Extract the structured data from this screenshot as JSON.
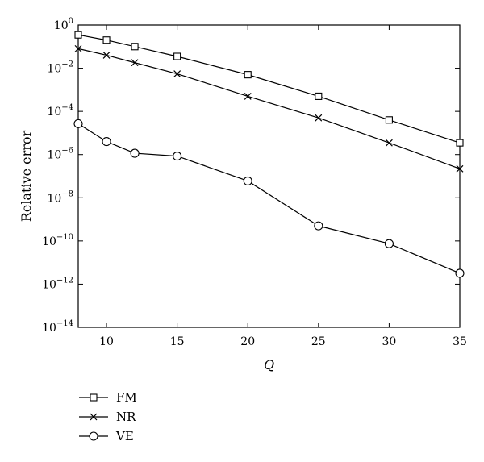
{
  "chart_data": {
    "type": "line",
    "title": "",
    "xlabel": "Q",
    "ylabel": "Relative error",
    "yscale": "log",
    "xlim": [
      8,
      35
    ],
    "ylim": [
      1e-14,
      1
    ],
    "x_ticks": [
      10,
      15,
      20,
      25,
      30,
      35
    ],
    "y_tick_exponents": [
      0,
      -2,
      -4,
      -6,
      -8,
      -10,
      -12,
      -14
    ],
    "grid": false,
    "legend_position": "below-left",
    "series": [
      {
        "name": "FM",
        "marker": "square",
        "color": "#000000",
        "x": [
          8,
          10,
          12,
          15,
          20,
          25,
          30,
          35
        ],
        "y": [
          0.35,
          0.2,
          0.1,
          0.035,
          0.005,
          0.0005,
          4e-05,
          3.5e-06
        ]
      },
      {
        "name": "NR",
        "marker": "cross",
        "color": "#000000",
        "x": [
          8,
          10,
          12,
          15,
          20,
          25,
          30,
          35
        ],
        "y": [
          0.08,
          0.04,
          0.018,
          0.0055,
          0.0005,
          5e-05,
          3.5e-06,
          2.2e-07
        ]
      },
      {
        "name": "VE",
        "marker": "circle",
        "color": "#000000",
        "x": [
          8,
          10,
          12,
          15,
          20,
          25,
          30,
          35
        ],
        "y": [
          2.7e-05,
          4e-06,
          1.15e-06,
          8.5e-07,
          6e-08,
          5e-10,
          7.5e-11,
          3.2e-12
        ]
      }
    ]
  }
}
